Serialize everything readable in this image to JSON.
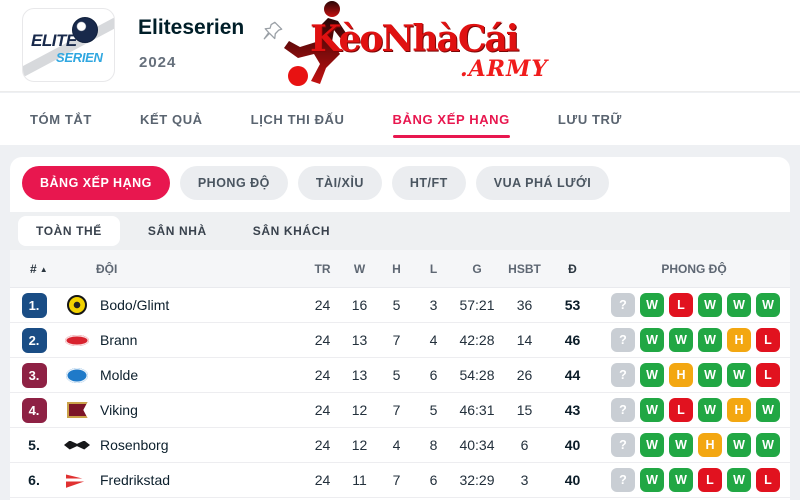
{
  "page": {
    "accent": "#e8174f",
    "background": "#eef0f3"
  },
  "header": {
    "logo": {
      "top": "ELITE",
      "bottom": "SERIEN"
    },
    "title": "Eliteserien",
    "season": "2024",
    "watermark": {
      "text": "KèoNhàCái",
      "suffix": ".ARMY",
      "color": "#e01111"
    }
  },
  "nav": {
    "items": [
      {
        "label": "TÓM TẮT",
        "active": false
      },
      {
        "label": "KẾT QUẢ",
        "active": false
      },
      {
        "label": "LỊCH THI ĐẤU",
        "active": false
      },
      {
        "label": "BẢNG XẾP HẠNG",
        "active": true
      },
      {
        "label": "LƯU TRỮ",
        "active": false
      }
    ]
  },
  "filters": {
    "items": [
      {
        "label": "BẢNG XẾP HẠNG",
        "active": true
      },
      {
        "label": "PHONG ĐỘ",
        "active": false
      },
      {
        "label": "TÀI/XỈU",
        "active": false
      },
      {
        "label": "HT/FT",
        "active": false
      },
      {
        "label": "VUA PHÁ LƯỚI",
        "active": false
      }
    ]
  },
  "subtabs": {
    "items": [
      {
        "label": "TOÀN THỂ",
        "active": true
      },
      {
        "label": "SÂN NHÀ",
        "active": false
      },
      {
        "label": "SÂN KHÁCH",
        "active": false
      }
    ]
  },
  "table": {
    "sort_icon": "▲",
    "columns": {
      "rank": "#",
      "team": "ĐỘI",
      "tr": "TR",
      "w": "W",
      "h": "H",
      "l": "L",
      "g": "G",
      "hsbt": "HSBT",
      "d": "Đ",
      "form": "PHONG ĐỘ"
    },
    "rank_badge_colors": {
      "blue": "#1a4d85",
      "maroon": "#8e2144"
    },
    "form_colors": {
      "W": "#21a744",
      "L": "#e1121f",
      "H": "#f3a711",
      "?": "#c9ced4"
    },
    "rows": [
      {
        "rank": "1.",
        "badge": "blue",
        "team": "Bodo/Glimt",
        "logo": "bodo",
        "tr": "24",
        "w": "16",
        "h": "5",
        "l": "3",
        "g": "57:21",
        "hsbt": "36",
        "d": "53",
        "form": [
          "?",
          "W",
          "L",
          "W",
          "W",
          "W"
        ]
      },
      {
        "rank": "2.",
        "badge": "blue",
        "team": "Brann",
        "logo": "brann",
        "tr": "24",
        "w": "13",
        "h": "7",
        "l": "4",
        "g": "42:28",
        "hsbt": "14",
        "d": "46",
        "form": [
          "?",
          "W",
          "W",
          "W",
          "H",
          "L"
        ]
      },
      {
        "rank": "3.",
        "badge": "maroon",
        "team": "Molde",
        "logo": "molde",
        "tr": "24",
        "w": "13",
        "h": "5",
        "l": "6",
        "g": "54:28",
        "hsbt": "26",
        "d": "44",
        "form": [
          "?",
          "W",
          "H",
          "W",
          "W",
          "L"
        ]
      },
      {
        "rank": "4.",
        "badge": "maroon",
        "team": "Viking",
        "logo": "viking",
        "tr": "24",
        "w": "12",
        "h": "7",
        "l": "5",
        "g": "46:31",
        "hsbt": "15",
        "d": "43",
        "form": [
          "?",
          "W",
          "L",
          "W",
          "H",
          "W"
        ]
      },
      {
        "rank": "5.",
        "badge": "none",
        "team": "Rosenborg",
        "logo": "rosenborg",
        "tr": "24",
        "w": "12",
        "h": "4",
        "l": "8",
        "g": "40:34",
        "hsbt": "6",
        "d": "40",
        "form": [
          "?",
          "W",
          "W",
          "H",
          "W",
          "W"
        ]
      },
      {
        "rank": "6.",
        "badge": "none",
        "team": "Fredrikstad",
        "logo": "fredrikstad",
        "tr": "24",
        "w": "11",
        "h": "7",
        "l": "6",
        "g": "32:29",
        "hsbt": "3",
        "d": "40",
        "form": [
          "?",
          "W",
          "W",
          "L",
          "W",
          "L"
        ]
      }
    ]
  }
}
